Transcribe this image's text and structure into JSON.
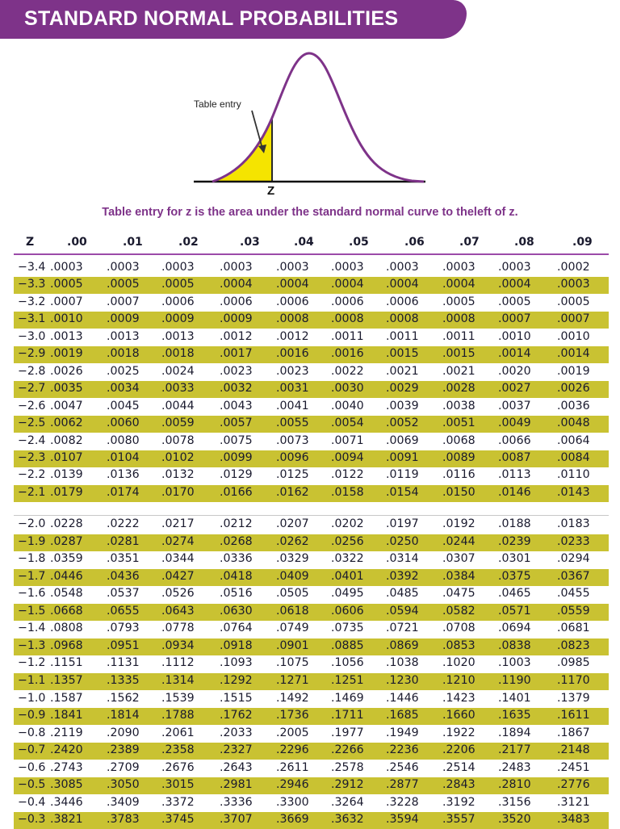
{
  "header": {
    "title": "STANDARD NORMAL PROBABILITIES"
  },
  "figure": {
    "table_entry_label": "Table entry",
    "z_label": "z",
    "caption": "Table entry for z is the area under the standard normal curve to theleft of z."
  },
  "colors": {
    "title_bar": "#7e3389",
    "caption_text": "#7e3389",
    "curve": "#7e3389",
    "shaded_area": "#f5e400",
    "stripe": "#c9c232",
    "header_rule": "#9b4aa8"
  },
  "table": {
    "columns": [
      "z",
      ".00",
      ".01",
      ".02",
      ".03",
      ".04",
      ".05",
      ".06",
      ".07",
      ".08",
      ".09"
    ],
    "block1": [
      {
        "z": "−3.4",
        "v": [
          ".0003",
          ".0003",
          ".0003",
          ".0003",
          ".0003",
          ".0003",
          ".0003",
          ".0003",
          ".0003",
          ".0002"
        ]
      },
      {
        "z": "−3.3",
        "v": [
          ".0005",
          ".0005",
          ".0005",
          ".0004",
          ".0004",
          ".0004",
          ".0004",
          ".0004",
          ".0004",
          ".0003"
        ]
      },
      {
        "z": "−3.2",
        "v": [
          ".0007",
          ".0007",
          ".0006",
          ".0006",
          ".0006",
          ".0006",
          ".0006",
          ".0005",
          ".0005",
          ".0005"
        ]
      },
      {
        "z": "−3.1",
        "v": [
          ".0010",
          ".0009",
          ".0009",
          ".0009",
          ".0008",
          ".0008",
          ".0008",
          ".0008",
          ".0007",
          ".0007"
        ]
      },
      {
        "z": "−3.0",
        "v": [
          ".0013",
          ".0013",
          ".0013",
          ".0012",
          ".0012",
          ".0011",
          ".0011",
          ".0011",
          ".0010",
          ".0010"
        ]
      },
      {
        "z": "−2.9",
        "v": [
          ".0019",
          ".0018",
          ".0018",
          ".0017",
          ".0016",
          ".0016",
          ".0015",
          ".0015",
          ".0014",
          ".0014"
        ]
      },
      {
        "z": "−2.8",
        "v": [
          ".0026",
          ".0025",
          ".0024",
          ".0023",
          ".0023",
          ".0022",
          ".0021",
          ".0021",
          ".0020",
          ".0019"
        ]
      },
      {
        "z": "−2.7",
        "v": [
          ".0035",
          ".0034",
          ".0033",
          ".0032",
          ".0031",
          ".0030",
          ".0029",
          ".0028",
          ".0027",
          ".0026"
        ]
      },
      {
        "z": "−2.6",
        "v": [
          ".0047",
          ".0045",
          ".0044",
          ".0043",
          ".0041",
          ".0040",
          ".0039",
          ".0038",
          ".0037",
          ".0036"
        ]
      },
      {
        "z": "−2.5",
        "v": [
          ".0062",
          ".0060",
          ".0059",
          ".0057",
          ".0055",
          ".0054",
          ".0052",
          ".0051",
          ".0049",
          ".0048"
        ]
      },
      {
        "z": "−2.4",
        "v": [
          ".0082",
          ".0080",
          ".0078",
          ".0075",
          ".0073",
          ".0071",
          ".0069",
          ".0068",
          ".0066",
          ".0064"
        ]
      },
      {
        "z": "−2.3",
        "v": [
          ".0107",
          ".0104",
          ".0102",
          ".0099",
          ".0096",
          ".0094",
          ".0091",
          ".0089",
          ".0087",
          ".0084"
        ]
      },
      {
        "z": "−2.2",
        "v": [
          ".0139",
          ".0136",
          ".0132",
          ".0129",
          ".0125",
          ".0122",
          ".0119",
          ".0116",
          ".0113",
          ".0110"
        ]
      },
      {
        "z": "−2.1",
        "v": [
          ".0179",
          ".0174",
          ".0170",
          ".0166",
          ".0162",
          ".0158",
          ".0154",
          ".0150",
          ".0146",
          ".0143"
        ]
      }
    ],
    "block2": [
      {
        "z": "−2.0",
        "v": [
          ".0228",
          ".0222",
          ".0217",
          ".0212",
          ".0207",
          ".0202",
          ".0197",
          ".0192",
          ".0188",
          ".0183"
        ]
      },
      {
        "z": "−1.9",
        "v": [
          ".0287",
          ".0281",
          ".0274",
          ".0268",
          ".0262",
          ".0256",
          ".0250",
          ".0244",
          ".0239",
          ".0233"
        ]
      },
      {
        "z": "−1.8",
        "v": [
          ".0359",
          ".0351",
          ".0344",
          ".0336",
          ".0329",
          ".0322",
          ".0314",
          ".0307",
          ".0301",
          ".0294"
        ]
      },
      {
        "z": "−1.7",
        "v": [
          ".0446",
          ".0436",
          ".0427",
          ".0418",
          ".0409",
          ".0401",
          ".0392",
          ".0384",
          ".0375",
          ".0367"
        ]
      },
      {
        "z": "−1.6",
        "v": [
          ".0548",
          ".0537",
          ".0526",
          ".0516",
          ".0505",
          ".0495",
          ".0485",
          ".0475",
          ".0465",
          ".0455"
        ]
      },
      {
        "z": "−1.5",
        "v": [
          ".0668",
          ".0655",
          ".0643",
          ".0630",
          ".0618",
          ".0606",
          ".0594",
          ".0582",
          ".0571",
          ".0559"
        ]
      },
      {
        "z": "−1.4",
        "v": [
          ".0808",
          ".0793",
          ".0778",
          ".0764",
          ".0749",
          ".0735",
          ".0721",
          ".0708",
          ".0694",
          ".0681"
        ]
      },
      {
        "z": "−1.3",
        "v": [
          ".0968",
          ".0951",
          ".0934",
          ".0918",
          ".0901",
          ".0885",
          ".0869",
          ".0853",
          ".0838",
          ".0823"
        ]
      },
      {
        "z": "−1.2",
        "v": [
          ".1151",
          ".1131",
          ".1112",
          ".1093",
          ".1075",
          ".1056",
          ".1038",
          ".1020",
          ".1003",
          ".0985"
        ]
      },
      {
        "z": "−1.1",
        "v": [
          ".1357",
          ".1335",
          ".1314",
          ".1292",
          ".1271",
          ".1251",
          ".1230",
          ".1210",
          ".1190",
          ".1170"
        ]
      },
      {
        "z": "−1.0",
        "v": [
          ".1587",
          ".1562",
          ".1539",
          ".1515",
          ".1492",
          ".1469",
          ".1446",
          ".1423",
          ".1401",
          ".1379"
        ]
      },
      {
        "z": "−0.9",
        "v": [
          ".1841",
          ".1814",
          ".1788",
          ".1762",
          ".1736",
          ".1711",
          ".1685",
          ".1660",
          ".1635",
          ".1611"
        ]
      },
      {
        "z": "−0.8",
        "v": [
          ".2119",
          ".2090",
          ".2061",
          ".2033",
          ".2005",
          ".1977",
          ".1949",
          ".1922",
          ".1894",
          ".1867"
        ]
      },
      {
        "z": "−0.7",
        "v": [
          ".2420",
          ".2389",
          ".2358",
          ".2327",
          ".2296",
          ".2266",
          ".2236",
          ".2206",
          ".2177",
          ".2148"
        ]
      },
      {
        "z": "−0.6",
        "v": [
          ".2743",
          ".2709",
          ".2676",
          ".2643",
          ".2611",
          ".2578",
          ".2546",
          ".2514",
          ".2483",
          ".2451"
        ]
      },
      {
        "z": "−0.5",
        "v": [
          ".3085",
          ".3050",
          ".3015",
          ".2981",
          ".2946",
          ".2912",
          ".2877",
          ".2843",
          ".2810",
          ".2776"
        ]
      },
      {
        "z": "−0.4",
        "v": [
          ".3446",
          ".3409",
          ".3372",
          ".3336",
          ".3300",
          ".3264",
          ".3228",
          ".3192",
          ".3156",
          ".3121"
        ]
      },
      {
        "z": "−0.3",
        "v": [
          ".3821",
          ".3783",
          ".3745",
          ".3707",
          ".3669",
          ".3632",
          ".3594",
          ".3557",
          ".3520",
          ".3483"
        ]
      }
    ]
  }
}
